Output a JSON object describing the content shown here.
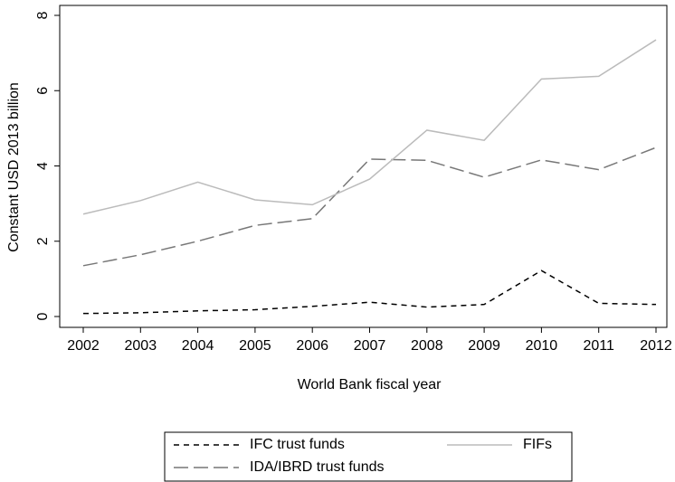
{
  "chart_data": {
    "type": "line",
    "x_label": "World Bank fiscal year",
    "y_label": "Constant USD 2013 billion",
    "x": [
      2002,
      2003,
      2004,
      2005,
      2006,
      2007,
      2008,
      2009,
      2010,
      2011,
      2012
    ],
    "xlim": [
      2002,
      2012
    ],
    "xticks": [
      2002,
      2003,
      2004,
      2005,
      2006,
      2007,
      2008,
      2009,
      2010,
      2011,
      2012
    ],
    "ylim": [
      0,
      8
    ],
    "yticks": [
      0,
      2,
      4,
      6,
      8
    ],
    "legend": "bottom",
    "series": [
      {
        "name": "IFC trust funds",
        "color": "#000000",
        "dash": "6,5",
        "values": [
          0.08,
          0.1,
          0.15,
          0.18,
          0.27,
          0.38,
          0.25,
          0.32,
          1.22,
          0.35,
          0.32
        ]
      },
      {
        "name": "IDA/IBRD trust funds",
        "color": "#777777",
        "dash": "16,6",
        "values": [
          1.35,
          1.64,
          2.0,
          2.42,
          2.6,
          4.18,
          4.15,
          3.7,
          4.16,
          3.9,
          4.49
        ]
      },
      {
        "name": "FIFs",
        "color": "#bbbbbb",
        "dash": "",
        "values": [
          2.72,
          3.08,
          3.57,
          3.1,
          2.97,
          3.65,
          4.95,
          4.68,
          6.31,
          6.38,
          7.35
        ]
      }
    ]
  }
}
